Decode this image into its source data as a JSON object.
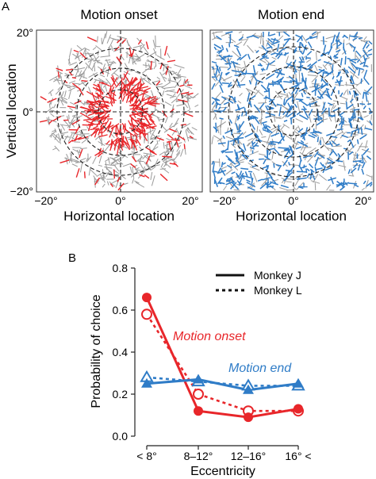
{
  "panel_a": {
    "label": "A",
    "ylabel": "Vertical location",
    "panels": [
      {
        "title": "Motion onset",
        "xlabel": "Horizontal location",
        "color": "#e8262a",
        "x_ticks": [
          "−20°",
          "0°",
          "20°"
        ],
        "y_ticks": [
          "20°",
          "0°",
          "−20°"
        ]
      },
      {
        "title": "Motion end",
        "xlabel": "Horizontal location",
        "color": "#2f7cc7",
        "x_ticks": [
          "−20°",
          "0°",
          "20°"
        ]
      }
    ],
    "background_color": "#9a9a9a"
  },
  "chart_data": {
    "type": "line",
    "panel_label": "B",
    "categories": [
      "< 8°",
      "8–12°",
      "12–16°",
      "16° <"
    ],
    "xlabel": "Eccentricity",
    "ylabel": "Probability of choice",
    "ylim": [
      0.0,
      0.8
    ],
    "y_ticks": [
      "0.0",
      "0.2",
      "0.4",
      "0.6",
      "0.8"
    ],
    "grid": false,
    "legend_position": "top-right",
    "legend": [
      {
        "label": "Monkey J",
        "style": "solid"
      },
      {
        "label": "Monkey L",
        "style": "dotted"
      }
    ],
    "annotations": [
      {
        "text": "Motion onset",
        "color": "#e8262a"
      },
      {
        "text": "Motion end",
        "color": "#2f7cc7"
      }
    ],
    "series": [
      {
        "label_group": "Motion onset",
        "monkey": "Monkey J",
        "color": "#e8262a",
        "marker": "filled-circle",
        "style": "solid",
        "values": [
          0.66,
          0.12,
          0.09,
          0.13
        ]
      },
      {
        "label_group": "Motion onset",
        "monkey": "Monkey L",
        "color": "#e8262a",
        "marker": "open-circle",
        "style": "dotted",
        "values": [
          0.58,
          0.2,
          0.12,
          0.12
        ]
      },
      {
        "label_group": "Motion end",
        "monkey": "Monkey J",
        "color": "#2f7cc7",
        "marker": "filled-triangle",
        "style": "solid",
        "values": [
          0.25,
          0.27,
          0.22,
          0.25
        ]
      },
      {
        "label_group": "Motion end",
        "monkey": "Monkey L",
        "color": "#2f7cc7",
        "marker": "open-triangle",
        "style": "dotted",
        "values": [
          0.28,
          0.26,
          0.24,
          0.24
        ]
      }
    ]
  }
}
